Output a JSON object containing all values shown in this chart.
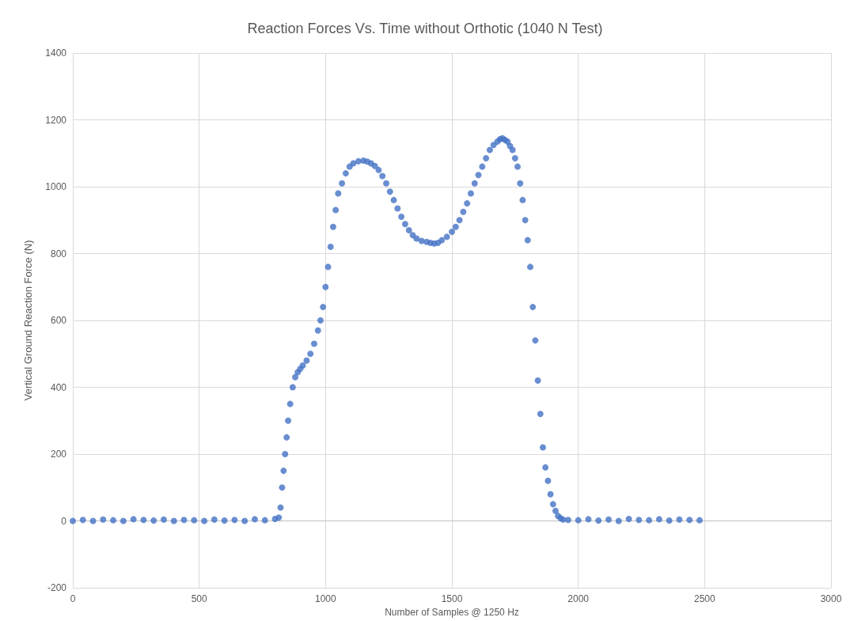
{
  "chart_data": {
    "type": "scatter",
    "title": "Reaction Forces Vs. Time without Orthotic (1040 N Test)",
    "xlabel": "Number of Samples @ 1250 Hz",
    "ylabel": "Vertical Ground Reaction Force (N)",
    "xlim": [
      0,
      3000
    ],
    "xticks": [
      0,
      500,
      1000,
      1500,
      2000,
      2500,
      3000
    ],
    "ylim": [
      -200,
      1400
    ],
    "yticks": [
      -200,
      0,
      200,
      400,
      600,
      800,
      1000,
      1200,
      1400
    ],
    "grid": true,
    "marker": "circle",
    "series": [
      {
        "color": "#4472c4",
        "x": [
          0,
          40,
          80,
          120,
          160,
          200,
          240,
          280,
          320,
          360,
          400,
          440,
          480,
          520,
          560,
          600,
          640,
          680,
          720,
          760,
          800,
          815,
          822,
          828,
          834,
          840,
          846,
          852,
          860,
          870,
          880,
          890,
          900,
          910,
          925,
          940,
          955,
          970,
          980,
          990,
          1000,
          1010,
          1020,
          1030,
          1040,
          1050,
          1065,
          1080,
          1095,
          1110,
          1130,
          1150,
          1165,
          1180,
          1195,
          1210,
          1225,
          1240,
          1255,
          1270,
          1285,
          1300,
          1315,
          1330,
          1345,
          1360,
          1380,
          1400,
          1415,
          1430,
          1445,
          1460,
          1480,
          1500,
          1515,
          1530,
          1545,
          1560,
          1575,
          1590,
          1605,
          1620,
          1635,
          1650,
          1665,
          1680,
          1690,
          1700,
          1710,
          1720,
          1730,
          1740,
          1750,
          1760,
          1770,
          1780,
          1790,
          1800,
          1810,
          1820,
          1830,
          1840,
          1850,
          1860,
          1870,
          1880,
          1890,
          1900,
          1910,
          1920,
          1930,
          1940,
          1960,
          2000,
          2040,
          2080,
          2120,
          2160,
          2200,
          2240,
          2280,
          2320,
          2360,
          2400,
          2440,
          2480
        ],
        "values": [
          0,
          3,
          0,
          4,
          2,
          0,
          5,
          3,
          1,
          4,
          0,
          3,
          2,
          0,
          4,
          1,
          3,
          0,
          5,
          2,
          6,
          10,
          40,
          100,
          150,
          200,
          250,
          300,
          350,
          400,
          430,
          445,
          455,
          465,
          480,
          500,
          530,
          570,
          600,
          640,
          700,
          760,
          820,
          880,
          930,
          980,
          1010,
          1040,
          1060,
          1070,
          1076,
          1078,
          1075,
          1070,
          1062,
          1050,
          1032,
          1010,
          985,
          960,
          935,
          910,
          888,
          870,
          855,
          845,
          838,
          835,
          832,
          830,
          832,
          840,
          850,
          865,
          880,
          900,
          925,
          950,
          980,
          1010,
          1035,
          1060,
          1085,
          1110,
          1125,
          1135,
          1142,
          1145,
          1140,
          1135,
          1122,
          1110,
          1085,
          1060,
          1010,
          960,
          900,
          840,
          760,
          640,
          540,
          420,
          320,
          220,
          160,
          120,
          80,
          50,
          30,
          15,
          8,
          4,
          3,
          2,
          5,
          1,
          4,
          0,
          6,
          3,
          2,
          5,
          1,
          4,
          3,
          2
        ]
      }
    ]
  }
}
